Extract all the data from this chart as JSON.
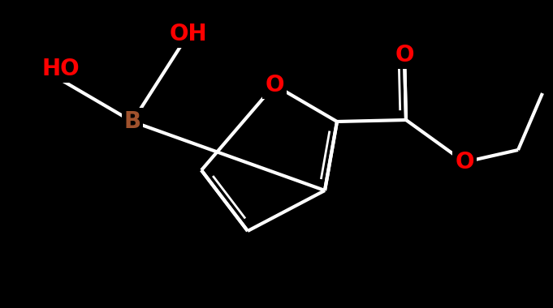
{
  "background_color": "#000000",
  "bond_color": "#ffffff",
  "bond_width": 3.0,
  "atom_colors": {
    "O": "#ff0000",
    "B": "#a0522d",
    "C": "#ffffff"
  },
  "label_fontsize": 20,
  "fig_width": 6.81,
  "fig_height": 3.8,
  "dpi": 100
}
